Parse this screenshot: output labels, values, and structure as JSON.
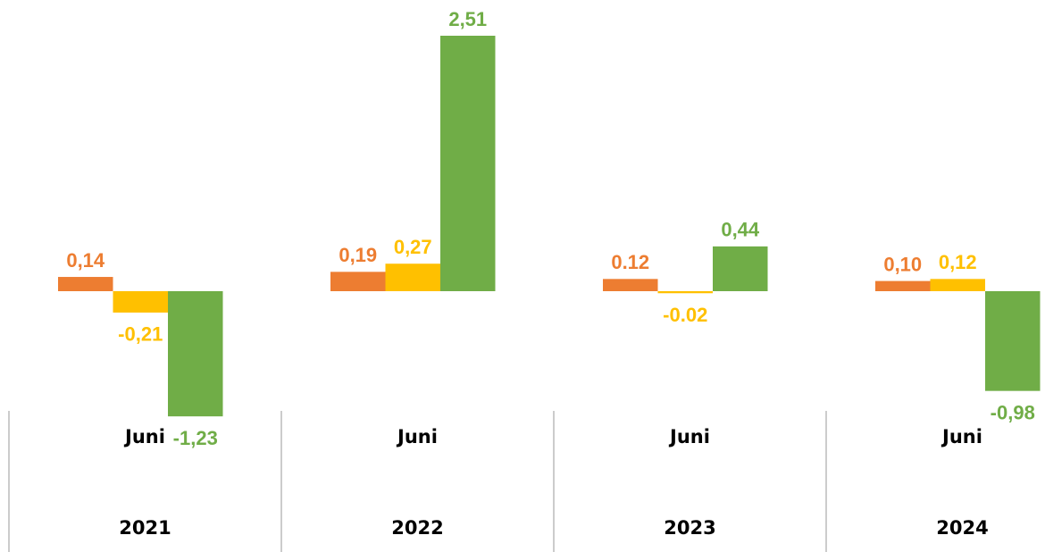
{
  "chart_data": {
    "type": "bar",
    "categories": [
      "2021",
      "2022",
      "2023",
      "2024"
    ],
    "month_labels": [
      "Juni",
      "Juni",
      "Juni",
      "Juni"
    ],
    "series": [
      {
        "color": "#ed7d31",
        "values": [
          0.14,
          0.19,
          0.12,
          0.1
        ],
        "value_labels": [
          "0,14",
          "0,19",
          "0.12",
          "0,10"
        ]
      },
      {
        "color": "#ffc000",
        "values": [
          -0.21,
          0.27,
          -0.02,
          0.12
        ],
        "value_labels": [
          "-0,21",
          "0,27",
          "-0.02",
          "0,12"
        ]
      },
      {
        "color": "#70ad47",
        "values": [
          -1.23,
          2.51,
          0.44,
          -0.98
        ],
        "value_labels": [
          "-1,23",
          "2,51",
          "0,44",
          "-0,98"
        ]
      }
    ]
  }
}
